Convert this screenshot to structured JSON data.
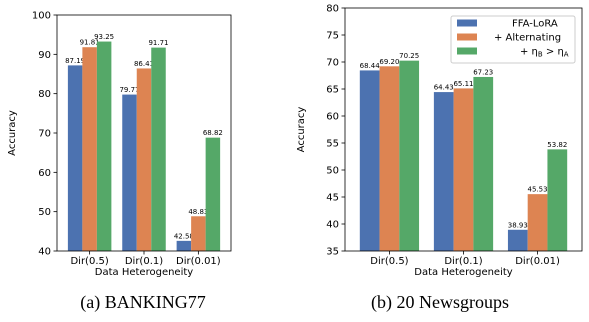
{
  "chart_data": [
    {
      "type": "bar",
      "caption": "(a) BANKING77",
      "xlabel": "Data Heterogeneity",
      "ylabel": "Accuracy",
      "ylim": [
        40,
        100
      ],
      "yticks": [
        40,
        50,
        60,
        70,
        80,
        90,
        100
      ],
      "categories": [
        "Dir(0.5)",
        "Dir(0.1)",
        "Dir(0.01)"
      ],
      "series": [
        {
          "name": "FFA-LoRA",
          "values": [
            87.19,
            79.77,
            42.58
          ],
          "labels": [
            "87.19",
            "79.77",
            "42.58"
          ]
        },
        {
          "name": "+ Alternating",
          "values": [
            91.81,
            86.41,
            48.83
          ],
          "labels": [
            "91.81",
            "86.41",
            "48.83"
          ]
        },
        {
          "name": "+ η_B > η_A",
          "values": [
            93.25,
            91.71,
            68.82
          ],
          "labels": [
            "93.25",
            "91.71",
            "68.82"
          ]
        }
      ],
      "grid": false,
      "legend": "none"
    },
    {
      "type": "bar",
      "caption": "(b) 20 Newsgroups",
      "xlabel": "Data Heterogeneity",
      "ylabel": "Accuracy",
      "ylim": [
        35,
        80
      ],
      "yticks": [
        35,
        40,
        45,
        50,
        55,
        60,
        65,
        70,
        75,
        80
      ],
      "categories": [
        "Dir(0.5)",
        "Dir(0.1)",
        "Dir(0.01)"
      ],
      "series": [
        {
          "name": "FFA-LoRA",
          "values": [
            68.44,
            64.43,
            38.93
          ],
          "labels": [
            "68.44",
            "64.43",
            "38.93"
          ]
        },
        {
          "name": "+ Alternating",
          "values": [
            69.2,
            65.11,
            45.53
          ],
          "labels": [
            "69.20",
            "65.11",
            "45.53"
          ]
        },
        {
          "name": "+ η_B > η_A",
          "values": [
            70.25,
            67.23,
            53.82
          ],
          "labels": [
            "70.25",
            "67.23",
            "53.82"
          ]
        }
      ],
      "grid": false,
      "legend": "top-right"
    }
  ],
  "colors": [
    "#4C72B0",
    "#DD8452",
    "#55A868"
  ],
  "legend_labels": {
    "s1": "FFA-LoRA",
    "s2": "+ Alternating",
    "s3_prefix": "+ η",
    "s3_sub1": "B",
    "s3_mid": " > η",
    "s3_sub2": "A"
  }
}
